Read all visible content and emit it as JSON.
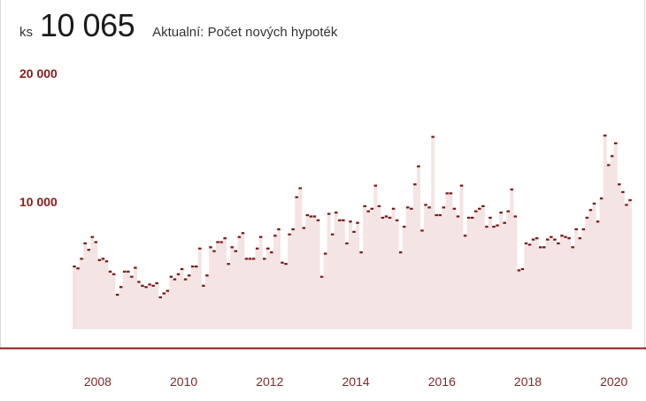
{
  "header": {
    "unit": "ks",
    "current_value": "10 065",
    "caption": "Aktualní: Počet nových hypoték"
  },
  "colors": {
    "area_fill": "#f4e4e4",
    "marker": "#7a1414",
    "axis_line": "#8c1a1a",
    "label": "#8c1a1a"
  },
  "chart_data": {
    "type": "area",
    "title": "Aktualní: Počet nových hypoték",
    "ylabel": "",
    "xlabel": "",
    "ylim": [
      0,
      20000
    ],
    "y_ticks": [
      10000,
      20000
    ],
    "y_tick_labels": [
      "10 000",
      "20 000"
    ],
    "x_ticks": [
      2008,
      2010,
      2012,
      2014,
      2016,
      2018,
      2020
    ],
    "x_tick_labels": [
      "2008",
      "2010",
      "2012",
      "2014",
      "2016",
      "2018",
      "2020"
    ],
    "x_start": "2007-06",
    "frequency": "monthly",
    "grid": false,
    "series": [
      {
        "values": [
          4900,
          4750,
          5500,
          6700,
          6200,
          7200,
          6800,
          5400,
          5500,
          5300,
          4500,
          4300,
          2700,
          3300,
          4500,
          4500,
          4100,
          4800,
          3700,
          3400,
          3300,
          3500,
          3400,
          3600,
          2500,
          2800,
          3000,
          4100,
          3900,
          4300,
          4700,
          3900,
          4200,
          4900,
          4900,
          6300,
          3400,
          4200,
          6400,
          6100,
          6800,
          6800,
          7100,
          5100,
          6400,
          6100,
          7200,
          7500,
          5500,
          5500,
          5500,
          6300,
          7200,
          5500,
          6300,
          6000,
          7300,
          7800,
          5200,
          5100,
          7400,
          7800,
          10300,
          11000,
          7900,
          8900,
          8800,
          8800,
          8500,
          4100,
          5900,
          9000,
          7400,
          9100,
          8500,
          8500,
          6700,
          8400,
          7600,
          8300,
          6000,
          9600,
          9200,
          9400,
          11200,
          9600,
          8700,
          8800,
          8700,
          9400,
          8500,
          6000,
          8000,
          9500,
          9400,
          11300,
          12700,
          7700,
          9700,
          9500,
          15000,
          8900,
          8900,
          9500,
          10600,
          10600,
          9400,
          8800,
          11200,
          7300,
          8700,
          8700,
          9200,
          9400,
          9600,
          8000,
          8700,
          8000,
          8100,
          9100,
          8300,
          9200,
          10900,
          8800,
          4600,
          4700,
          6700,
          6600,
          7000,
          7100,
          6400,
          6400,
          7000,
          7200,
          7000,
          6700,
          7300,
          7200,
          7100,
          6400,
          7800,
          7100,
          7800,
          8700,
          9300,
          9800,
          8400,
          10200,
          15100,
          12800,
          13500,
          14500,
          11300,
          10700,
          9700,
          10065
        ]
      }
    ]
  }
}
